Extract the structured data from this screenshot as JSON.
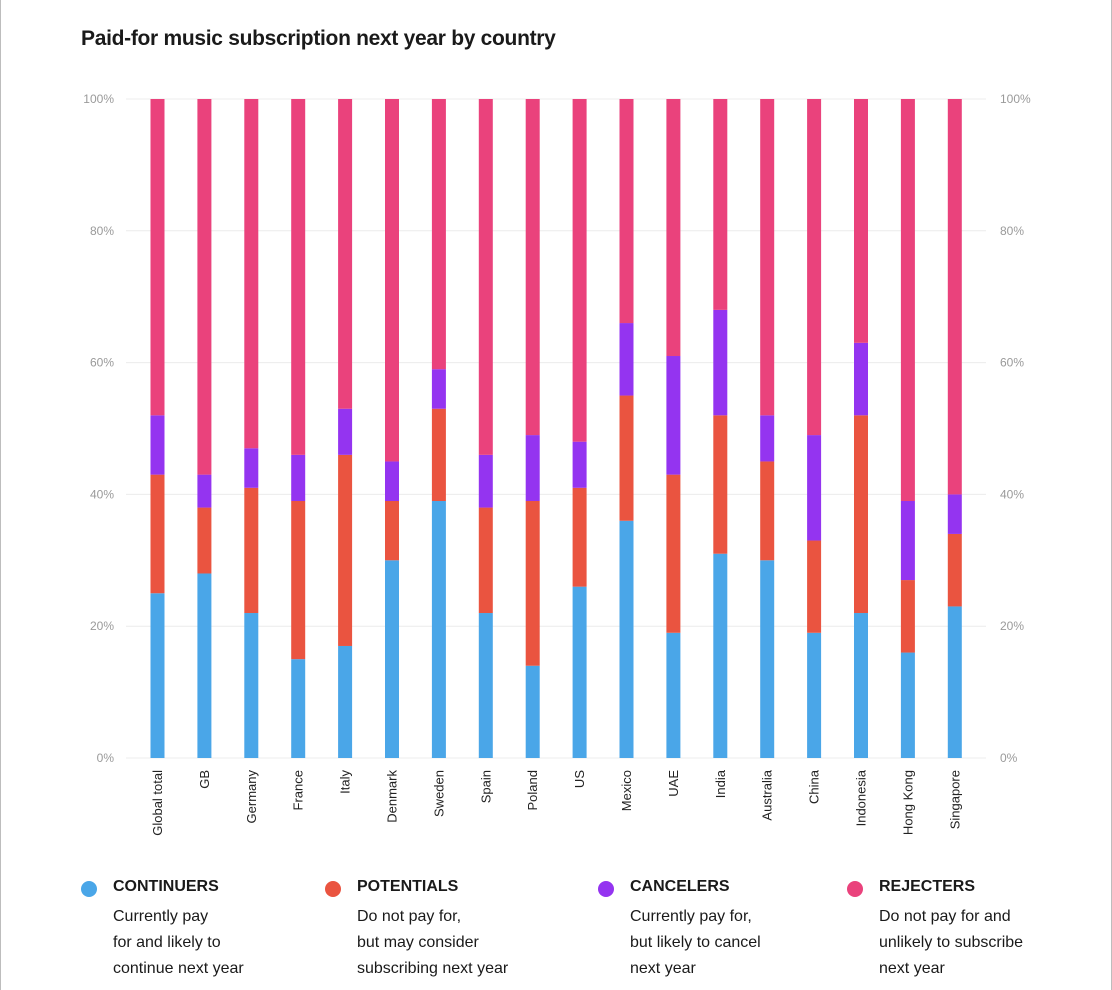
{
  "chart_data": {
    "type": "stacked-bar",
    "title": "Paid-for music subscription next year by country",
    "categories": [
      "Global total",
      "GB",
      "Germany",
      "France",
      "Italy",
      "Denmark",
      "Sweden",
      "Spain",
      "Poland",
      "US",
      "Mexico",
      "UAE",
      "India",
      "Australia",
      "China",
      "Indonesia",
      "Hong Kong",
      "Singapore"
    ],
    "series": [
      {
        "name": "CONTINUERS",
        "color": "#4aa6e8",
        "values": [
          25,
          28,
          22,
          15,
          17,
          30,
          39,
          22,
          14,
          26,
          36,
          19,
          31,
          30,
          19,
          22,
          16,
          23
        ]
      },
      {
        "name": "POTENTIALS",
        "color": "#ea5440",
        "values": [
          18,
          10,
          19,
          24,
          29,
          9,
          14,
          16,
          25,
          15,
          19,
          24,
          21,
          15,
          14,
          30,
          11,
          11
        ]
      },
      {
        "name": "CANCELERS",
        "color": "#9434f0",
        "values": [
          9,
          5,
          6,
          7,
          7,
          6,
          6,
          8,
          10,
          7,
          11,
          18,
          16,
          7,
          16,
          11,
          12,
          6
        ]
      },
      {
        "name": "REJECTERS",
        "color": "#ea427c",
        "values": [
          48,
          57,
          53,
          54,
          47,
          55,
          41,
          54,
          51,
          52,
          34,
          39,
          32,
          48,
          51,
          37,
          61,
          60
        ]
      }
    ],
    "y_ticks": [
      "0%",
      "20%",
      "40%",
      "60%",
      "80%",
      "100%"
    ],
    "ylim": [
      0,
      100
    ],
    "grid": true,
    "legend": "bottom"
  },
  "legend": [
    {
      "name": "CONTINUERS",
      "lines": [
        "Currently pay",
        "for and likely to",
        "continue next year"
      ]
    },
    {
      "name": "POTENTIALS",
      "lines": [
        "Do not pay for,",
        "but may consider",
        "subscribing next year"
      ]
    },
    {
      "name": "CANCELERS",
      "lines": [
        "Currently pay for,",
        "but likely to cancel",
        "next year"
      ]
    },
    {
      "name": "REJECTERS",
      "lines": [
        "Do not pay for and",
        "unlikely to subscribe",
        "next year"
      ]
    }
  ]
}
